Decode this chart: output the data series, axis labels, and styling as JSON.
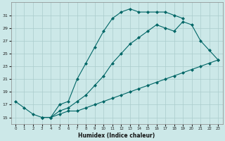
{
  "xlabel": "Humidex (Indice chaleur)",
  "bg_color": "#cce8e8",
  "grid_color": "#aacccc",
  "line_color": "#006666",
  "xlim": [
    -0.5,
    23.5
  ],
  "ylim": [
    14.0,
    33.0
  ],
  "yticks": [
    15,
    17,
    19,
    21,
    23,
    25,
    27,
    29,
    31
  ],
  "xticks": [
    0,
    1,
    2,
    3,
    4,
    5,
    6,
    7,
    8,
    9,
    10,
    11,
    12,
    13,
    14,
    15,
    16,
    17,
    18,
    19,
    20,
    21,
    22,
    23
  ],
  "line1_x": [
    0,
    1,
    2,
    3,
    4,
    5,
    6,
    7,
    8,
    9,
    10,
    11,
    12,
    13,
    14,
    15,
    16,
    17,
    18,
    19
  ],
  "line1_y": [
    17.5,
    16.5,
    15.5,
    15.0,
    15.0,
    17.0,
    17.5,
    21.0,
    23.5,
    26.0,
    28.5,
    30.5,
    31.5,
    32.0,
    31.5,
    31.5,
    31.5,
    31.5,
    31.0,
    30.5
  ],
  "line2_x": [
    3,
    4,
    5,
    6,
    7,
    8,
    9,
    10,
    11,
    12,
    13,
    14,
    15,
    16,
    17,
    18,
    19,
    20,
    21,
    22,
    23
  ],
  "line2_y": [
    15.0,
    15.0,
    16.0,
    16.5,
    17.5,
    18.5,
    20.0,
    21.5,
    23.5,
    25.0,
    26.5,
    27.5,
    28.5,
    29.5,
    29.0,
    28.5,
    30.0,
    29.5,
    27.0,
    25.5,
    24.0
  ],
  "line3_x": [
    3,
    4,
    5,
    6,
    7,
    8,
    9,
    10,
    11,
    12,
    13,
    14,
    15,
    16,
    17,
    18,
    19,
    20,
    21,
    22,
    23
  ],
  "line3_y": [
    15.0,
    15.0,
    15.5,
    16.0,
    16.0,
    16.5,
    17.0,
    17.5,
    18.0,
    18.5,
    19.0,
    19.5,
    20.0,
    20.5,
    21.0,
    21.5,
    22.0,
    22.5,
    23.0,
    23.5,
    24.0
  ]
}
